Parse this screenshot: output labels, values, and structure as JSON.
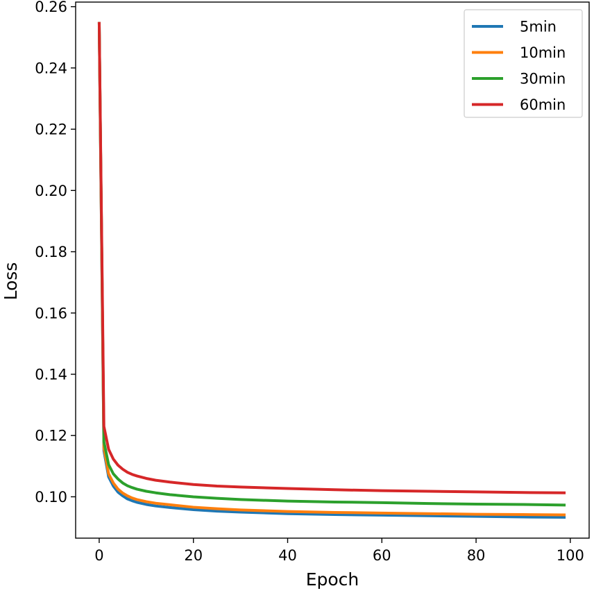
{
  "chart_data": {
    "type": "line",
    "title": "",
    "xlabel": "Epoch",
    "ylabel": "Loss",
    "xlim": [
      -5,
      104
    ],
    "ylim": [
      0.0865,
      0.2615
    ],
    "xticks": [
      0,
      20,
      40,
      60,
      80,
      100
    ],
    "yticks": [
      0.1,
      0.12,
      0.14,
      0.16,
      0.18,
      0.2,
      0.22,
      0.24,
      0.26
    ],
    "xtick_labels": [
      "0",
      "20",
      "40",
      "60",
      "80",
      "100"
    ],
    "ytick_labels": [
      "0.10",
      "0.12",
      "0.14",
      "0.16",
      "0.18",
      "0.20",
      "0.22",
      "0.24",
      "0.26"
    ],
    "grid": false,
    "legend_position": "top-right",
    "x": [
      0,
      1,
      2,
      3,
      4,
      5,
      6,
      7,
      8,
      10,
      12,
      15,
      20,
      25,
      30,
      40,
      50,
      60,
      70,
      80,
      90,
      99
    ],
    "series": [
      {
        "name": "5min",
        "color": "#1f77b4",
        "values": [
          0.255,
          0.115,
          0.1065,
          0.1035,
          0.1015,
          0.1003,
          0.0993,
          0.0987,
          0.0982,
          0.0975,
          0.097,
          0.0965,
          0.0958,
          0.0953,
          0.095,
          0.0945,
          0.0942,
          0.094,
          0.0938,
          0.0936,
          0.0934,
          0.0933
        ]
      },
      {
        "name": "10min",
        "color": "#ff7f0e",
        "values": [
          0.255,
          0.116,
          0.1075,
          0.1045,
          0.1025,
          0.1012,
          0.1003,
          0.0996,
          0.0991,
          0.0984,
          0.0979,
          0.0974,
          0.0966,
          0.0961,
          0.0957,
          0.0952,
          0.0949,
          0.0947,
          0.0945,
          0.0943,
          0.0942,
          0.0941
        ]
      },
      {
        "name": "30min",
        "color": "#2ca02c",
        "values": [
          0.255,
          0.118,
          0.1105,
          0.1075,
          0.1058,
          0.1045,
          0.1036,
          0.103,
          0.1025,
          0.1018,
          0.1013,
          0.1007,
          0.1,
          0.0995,
          0.0991,
          0.0986,
          0.0983,
          0.0981,
          0.0978,
          0.0976,
          0.0975,
          0.0973
        ]
      },
      {
        "name": "60min",
        "color": "#d62728",
        "values": [
          0.255,
          0.123,
          0.1155,
          0.1123,
          0.1103,
          0.109,
          0.108,
          0.1073,
          0.1068,
          0.106,
          0.1054,
          0.1048,
          0.104,
          0.1035,
          0.1032,
          0.1027,
          0.1023,
          0.102,
          0.1018,
          0.1016,
          0.1014,
          0.1013
        ]
      }
    ]
  }
}
